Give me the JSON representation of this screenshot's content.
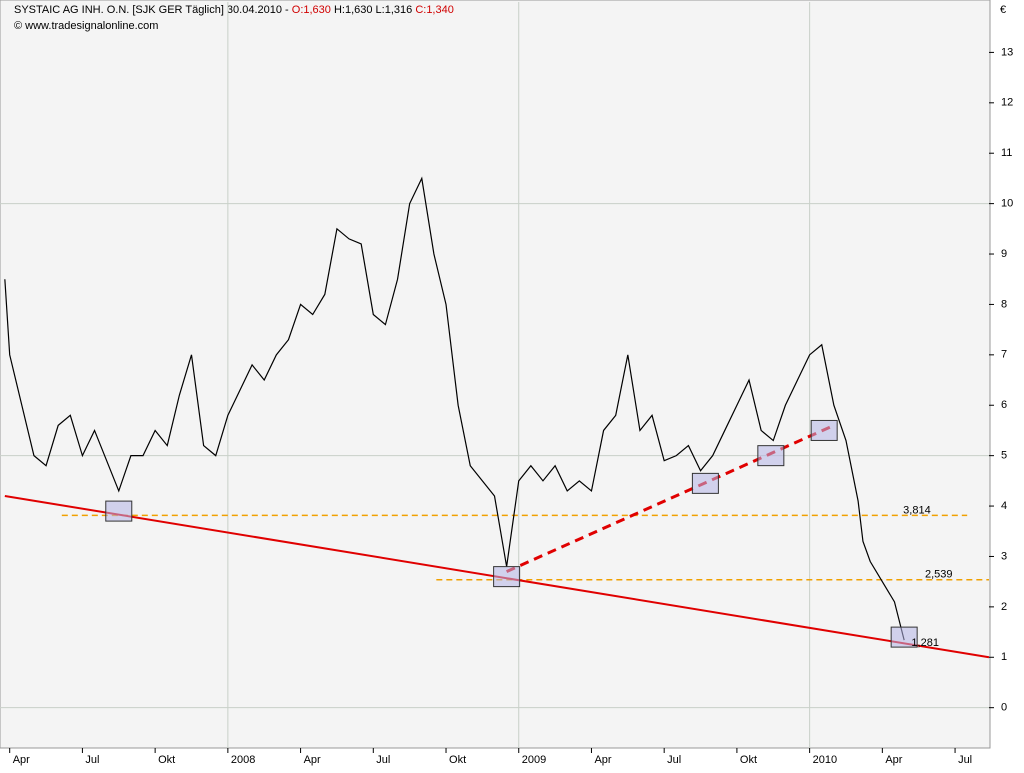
{
  "chart_data": {
    "type": "line",
    "title_parts": [
      "SYSTAIC AG INH. O.N. [SJK GER  Täglich] 30.04.2010 - ",
      "O:1,630",
      " H:1,630 L:1,316 ",
      "C:1,340"
    ],
    "subtitle": "© www.tradesignalonline.com",
    "currency": "€",
    "x": [
      2.8,
      3.0,
      3.5,
      4.0,
      4.5,
      5.0,
      5.5,
      6.0,
      6.5,
      7.0,
      7.5,
      8.0,
      8.5,
      9.0,
      9.5,
      10.0,
      10.5,
      11.0,
      11.5,
      12.0,
      12.5,
      13.0,
      13.5,
      14.0,
      14.5,
      15.0,
      15.5,
      16.0,
      16.5,
      17.0,
      17.5,
      18.0,
      18.5,
      19.0,
      19.5,
      20.0,
      20.5,
      21.0,
      21.5,
      22.0,
      22.5,
      23.0,
      23.5,
      24.0,
      24.5,
      25.0,
      25.5,
      26.0,
      26.5,
      27.0,
      27.5,
      28.0,
      28.5,
      29.0,
      29.5,
      30.0,
      30.5,
      31.0,
      31.5,
      32.0,
      32.5,
      33.0,
      33.5,
      34.0,
      34.5,
      35.0,
      35.5,
      36.0,
      36.5,
      37.0,
      37.5,
      38.0,
      38.2,
      38.5,
      39.0,
      39.5,
      39.9
    ],
    "series": [
      {
        "name": "SYSTAIC AG INH. O.N.",
        "color": "#000000",
        "values": [
          8.5,
          7.0,
          6.0,
          5.0,
          4.8,
          5.6,
          5.8,
          5.0,
          5.5,
          4.9,
          4.3,
          5.0,
          5.0,
          5.5,
          5.2,
          6.2,
          7.0,
          5.2,
          5.0,
          5.8,
          6.3,
          6.8,
          6.5,
          7.0,
          7.3,
          8.0,
          7.8,
          8.2,
          9.5,
          9.3,
          9.2,
          7.8,
          7.6,
          8.5,
          10.0,
          10.5,
          9.0,
          8.0,
          6.0,
          4.8,
          4.5,
          4.2,
          2.8,
          4.5,
          4.8,
          4.5,
          4.8,
          4.3,
          4.5,
          4.3,
          5.5,
          5.8,
          7.0,
          5.5,
          5.8,
          4.9,
          5.0,
          5.2,
          4.7,
          5.0,
          5.5,
          6.0,
          6.5,
          5.5,
          5.3,
          6.0,
          6.5,
          7.0,
          7.2,
          6.0,
          5.3,
          4.1,
          3.3,
          2.9,
          2.5,
          2.1,
          1.34
        ]
      }
    ],
    "xlim": [
      2.6,
      43.4
    ],
    "xticks": [
      {
        "value": 3,
        "label": "Apr"
      },
      {
        "value": 6,
        "label": "Jul"
      },
      {
        "value": 9,
        "label": "Okt"
      },
      {
        "value": 12,
        "label": "2008"
      },
      {
        "value": 15,
        "label": "Apr"
      },
      {
        "value": 18,
        "label": "Jul"
      },
      {
        "value": 21,
        "label": "Okt"
      },
      {
        "value": 24,
        "label": "2009"
      },
      {
        "value": 27,
        "label": "Apr"
      },
      {
        "value": 30,
        "label": "Jul"
      },
      {
        "value": 33,
        "label": "Okt"
      },
      {
        "value": 36,
        "label": "2010"
      },
      {
        "value": 39,
        "label": "Apr"
      },
      {
        "value": 42,
        "label": "Jul"
      }
    ],
    "xgrid": [
      12,
      24,
      36
    ],
    "ylim": [
      -0.8,
      14
    ],
    "yticks": [
      0,
      1,
      2,
      3,
      4,
      5,
      6,
      7,
      8,
      9,
      10,
      11,
      12,
      13
    ],
    "ygrid": [
      0,
      5,
      10
    ],
    "levels": [
      {
        "value": 3.814,
        "label": "3,814",
        "x": [
          5.15,
          42.5
        ],
        "color": "#f0a000"
      },
      {
        "value": 2.539,
        "label": "2,539",
        "x": [
          20.6,
          43.4
        ],
        "color": "#f0a000"
      }
    ],
    "annotations": [
      {
        "value": 1.281,
        "label": "1,281",
        "x": 40.2,
        "color": "#e00000"
      }
    ],
    "trendlines": [
      {
        "points": [
          [
            2.8,
            4.2
          ],
          [
            43.4,
            1.0
          ]
        ],
        "color": "#e00000",
        "dashed": false
      },
      {
        "points": [
          [
            23.5,
            2.7
          ],
          [
            37.0,
            5.6
          ]
        ],
        "color": "#e00000",
        "dashed": true
      }
    ],
    "markers": [
      [
        7.5,
        3.9
      ],
      [
        23.5,
        2.6
      ],
      [
        31.7,
        4.45
      ],
      [
        34.4,
        5.0
      ],
      [
        36.6,
        5.5
      ],
      [
        39.9,
        1.4
      ]
    ]
  }
}
